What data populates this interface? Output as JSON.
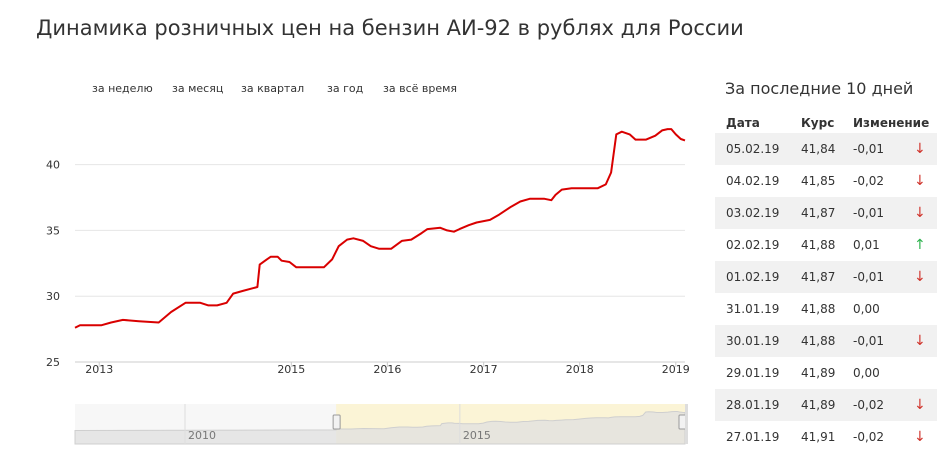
{
  "title": "Динамика розничных цен на бензин АИ-92 в рублях для России",
  "range_tabs": [
    "за неделю",
    "за месяц",
    "за квартал",
    "за год",
    "за всё время"
  ],
  "chart_data": {
    "type": "line",
    "title": "Динамика розничных цен на бензин АИ-92 в рублях для России",
    "xlabel": "",
    "ylabel": "",
    "x_ticks": [
      "2013",
      "2015",
      "2016",
      "2017",
      "2018",
      "2019"
    ],
    "y_ticks": [
      25,
      30,
      35,
      40
    ],
    "xlim": [
      "2012-10-01",
      "2019-02-05"
    ],
    "ylim": [
      25,
      44
    ],
    "grid": true,
    "series": [
      {
        "name": "",
        "color": "#d90000",
        "points": [
          [
            "2012-10-01",
            27.6
          ],
          [
            "2012-10-20",
            27.8
          ],
          [
            "2013-01-10",
            27.8
          ],
          [
            "2013-02-15",
            28.0
          ],
          [
            "2013-04-01",
            28.2
          ],
          [
            "2013-06-01",
            28.1
          ],
          [
            "2013-08-15",
            28.0
          ],
          [
            "2013-10-01",
            28.8
          ],
          [
            "2013-11-25",
            29.5
          ],
          [
            "2014-01-20",
            29.5
          ],
          [
            "2014-02-20",
            29.3
          ],
          [
            "2014-03-25",
            29.3
          ],
          [
            "2014-04-30",
            29.5
          ],
          [
            "2014-05-25",
            30.2
          ],
          [
            "2014-07-01",
            30.4
          ],
          [
            "2014-08-25",
            30.7
          ],
          [
            "2014-09-03",
            32.4
          ],
          [
            "2014-09-30",
            32.8
          ],
          [
            "2014-10-15",
            33.0
          ],
          [
            "2014-11-10",
            33.0
          ],
          [
            "2014-11-25",
            32.7
          ],
          [
            "2014-12-25",
            32.6
          ],
          [
            "2015-01-20",
            32.2
          ],
          [
            "2015-03-01",
            32.2
          ],
          [
            "2015-05-05",
            32.2
          ],
          [
            "2015-06-05",
            32.8
          ],
          [
            "2015-06-30",
            33.8
          ],
          [
            "2015-08-01",
            34.3
          ],
          [
            "2015-08-25",
            34.4
          ],
          [
            "2015-10-01",
            34.2
          ],
          [
            "2015-10-30",
            33.8
          ],
          [
            "2015-12-01",
            33.6
          ],
          [
            "2016-01-15",
            33.6
          ],
          [
            "2016-02-25",
            34.2
          ],
          [
            "2016-04-01",
            34.3
          ],
          [
            "2016-05-10",
            34.8
          ],
          [
            "2016-06-01",
            35.1
          ],
          [
            "2016-07-20",
            35.2
          ],
          [
            "2016-08-15",
            35.0
          ],
          [
            "2016-09-10",
            34.9
          ],
          [
            "2016-10-01",
            35.1
          ],
          [
            "2016-11-05",
            35.4
          ],
          [
            "2016-12-05",
            35.6
          ],
          [
            "2017-01-25",
            35.8
          ],
          [
            "2017-03-01",
            36.2
          ],
          [
            "2017-04-15",
            36.8
          ],
          [
            "2017-05-20",
            37.2
          ],
          [
            "2017-06-25",
            37.4
          ],
          [
            "2017-08-20",
            37.4
          ],
          [
            "2017-09-15",
            37.3
          ],
          [
            "2017-10-01",
            37.7
          ],
          [
            "2017-10-25",
            38.1
          ],
          [
            "2017-12-01",
            38.2
          ],
          [
            "2018-01-20",
            38.2
          ],
          [
            "2018-03-10",
            38.2
          ],
          [
            "2018-04-10",
            38.5
          ],
          [
            "2018-04-30",
            39.4
          ],
          [
            "2018-05-20",
            42.3
          ],
          [
            "2018-06-10",
            42.5
          ],
          [
            "2018-07-10",
            42.3
          ],
          [
            "2018-08-01",
            41.9
          ],
          [
            "2018-09-10",
            41.9
          ],
          [
            "2018-10-15",
            42.2
          ],
          [
            "2018-11-10",
            42.6
          ],
          [
            "2018-12-01",
            42.7
          ],
          [
            "2018-12-15",
            42.7
          ],
          [
            "2019-01-01",
            42.3
          ],
          [
            "2019-01-20",
            41.95
          ],
          [
            "2019-02-05",
            41.84
          ]
        ]
      }
    ],
    "navigator": {
      "x_ticks": [
        "2010",
        "2015"
      ],
      "xlim": [
        "2008-01-01",
        "2019-02-05"
      ],
      "selected_range": [
        "2012-10-01",
        "2019-02-05"
      ]
    }
  },
  "side_panel": {
    "title": "За последние 10 дней",
    "columns": [
      "Дата",
      "Курс",
      "Изменение"
    ],
    "rows": [
      {
        "date": "05.02.19",
        "rate": "41,84",
        "change": "-0,01",
        "arrow": "↓",
        "dir": "down"
      },
      {
        "date": "04.02.19",
        "rate": "41,85",
        "change": "-0,02",
        "arrow": "↓",
        "dir": "down"
      },
      {
        "date": "03.02.19",
        "rate": "41,87",
        "change": "-0,01",
        "arrow": "↓",
        "dir": "down"
      },
      {
        "date": "02.02.19",
        "rate": "41,88",
        "change": "0,01",
        "arrow": "↑",
        "dir": "up"
      },
      {
        "date": "01.02.19",
        "rate": "41,87",
        "change": "-0,01",
        "arrow": "↓",
        "dir": "down"
      },
      {
        "date": "31.01.19",
        "rate": "41,88",
        "change": "0,00",
        "arrow": "",
        "dir": "none"
      },
      {
        "date": "30.01.19",
        "rate": "41,88",
        "change": "-0,01",
        "arrow": "↓",
        "dir": "down"
      },
      {
        "date": "29.01.19",
        "rate": "41,89",
        "change": "0,00",
        "arrow": "",
        "dir": "none"
      },
      {
        "date": "28.01.19",
        "rate": "41,89",
        "change": "-0,02",
        "arrow": "↓",
        "dir": "down"
      },
      {
        "date": "27.01.19",
        "rate": "41,91",
        "change": "-0,02",
        "arrow": "↓",
        "dir": "down"
      }
    ]
  },
  "colors": {
    "line": "#d90000",
    "grid": "#e6e6e6",
    "arrow_down": "#d0342c",
    "arrow_up": "#2bb24c",
    "navigator_area": "#e0e0e0",
    "navigator_selection": "#fbf4d6"
  }
}
